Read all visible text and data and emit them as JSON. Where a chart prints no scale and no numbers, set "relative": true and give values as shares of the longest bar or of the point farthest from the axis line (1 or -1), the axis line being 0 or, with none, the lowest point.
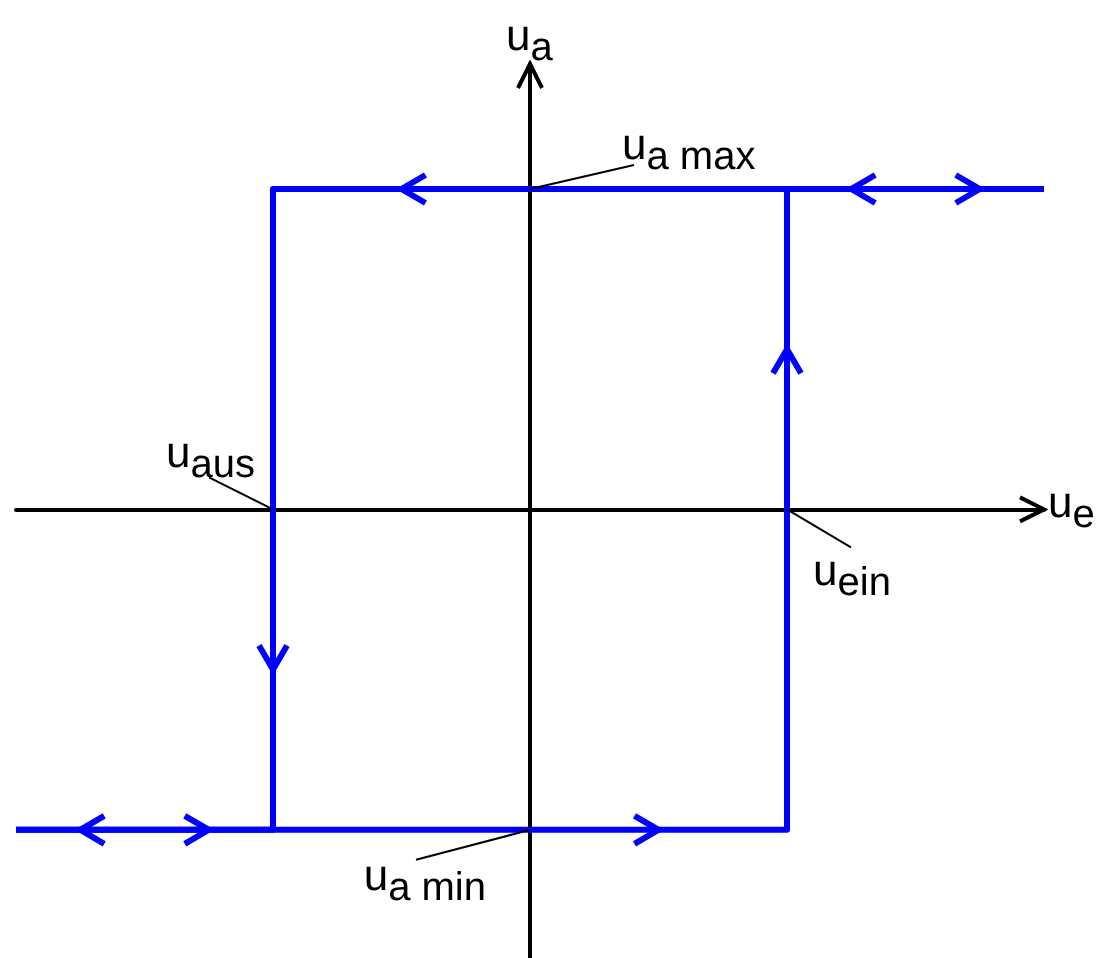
{
  "chart_data": {
    "type": "step",
    "relative": true,
    "xlabel": "u$_{e}$",
    "ylabel": "u$_{a}$",
    "categories": [
      null,
      null,
      null,
      null,
      null
    ],
    "series": [
      {
        "color": "#0000ff",
        "values": [
          -1,
          -1,
          -1,
          1,
          1
        ]
      },
      {
        "color": "#0000ff",
        "values": [
          -1,
          1,
          1,
          1,
          1
        ]
      }
    ],
    "annotations": [
      "u$_{a max}$",
      "u$_{aus}$",
      "u$_{ein}$",
      "u$_{a min}$"
    ],
    "marker": "none",
    "line_style": "solid"
  }
}
